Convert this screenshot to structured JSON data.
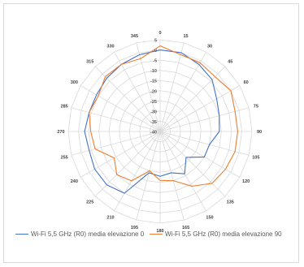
{
  "chart_data": {
    "type": "radar",
    "angles": [
      "0",
      "15",
      "30",
      "45",
      "60",
      "75",
      "90",
      "105",
      "120",
      "135",
      "150",
      "165",
      "180",
      "195",
      "210",
      "225",
      "240",
      "255",
      "270",
      "285",
      "300",
      "315",
      "330",
      "345"
    ],
    "radial_ticks": [
      "5",
      "0",
      "-5",
      "-10",
      "-15",
      "-20",
      "-25",
      "-30",
      "-35",
      "-40"
    ],
    "rlim": [
      -40,
      5
    ],
    "grid": true,
    "legend_position": "bottom",
    "series": [
      {
        "name": "Wi-Fi 5,5 GHz (R0) media elevazione 0",
        "color": "#4472c4",
        "values": [
          0,
          0,
          -2,
          -4,
          -8,
          -10,
          -11,
          -15,
          -15,
          -22,
          -16,
          -19,
          -18,
          -19,
          -5,
          -3,
          -3,
          -4,
          -3,
          -4,
          -4,
          -3,
          -2,
          -1
        ]
      },
      {
        "name": "Wi-Fi 5,5 GHz (R0) media elevazione 90",
        "color": "#ed7d31",
        "values": [
          2,
          -1,
          -1,
          -2,
          0,
          -2,
          -2,
          -2,
          -3,
          -4,
          -9,
          -15,
          -16,
          -20,
          -12,
          -10,
          -14,
          -7,
          -6,
          -4,
          -5,
          -2,
          -2,
          -3
        ]
      }
    ]
  }
}
